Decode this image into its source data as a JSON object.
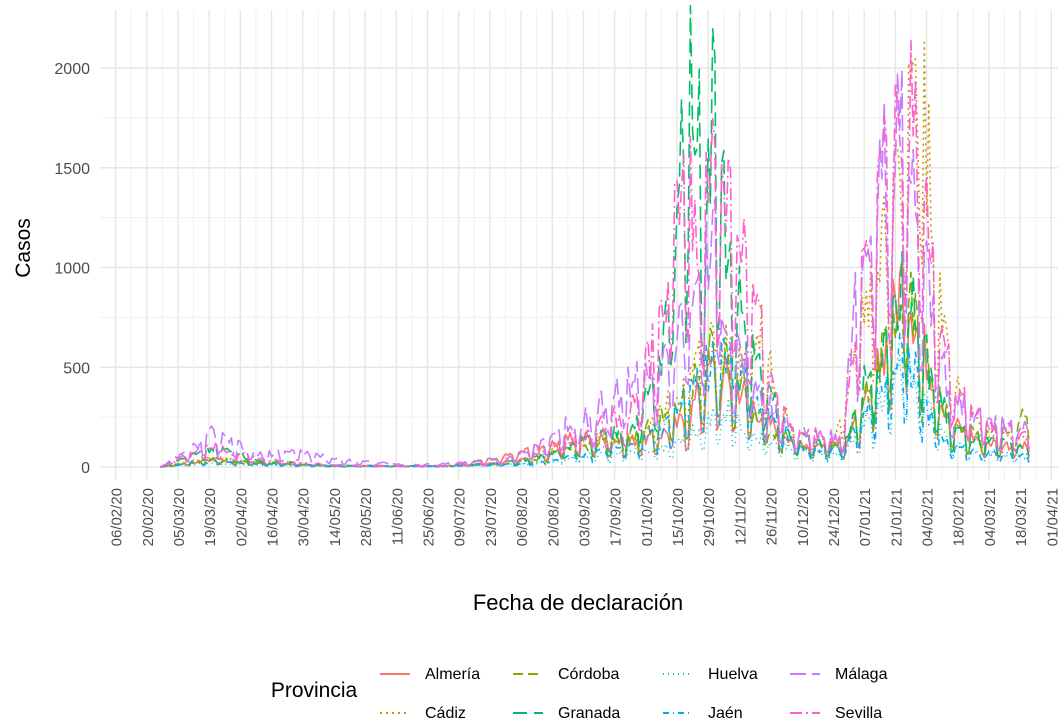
{
  "chart_data": {
    "type": "line",
    "title": "",
    "xlabel": "Fecha de declaración",
    "ylabel": "Casos",
    "x_tick_labels": [
      "06/02/20",
      "20/02/20",
      "05/03/20",
      "19/03/20",
      "02/04/20",
      "16/04/20",
      "30/04/20",
      "14/05/20",
      "28/05/20",
      "11/06/20",
      "25/06/20",
      "09/07/20",
      "23/07/20",
      "06/08/20",
      "20/08/20",
      "03/09/20",
      "17/09/20",
      "01/10/20",
      "15/10/20",
      "29/10/20",
      "12/11/20",
      "26/11/20",
      "10/12/20",
      "24/12/20",
      "07/01/21",
      "21/01/21",
      "04/02/21",
      "18/02/21",
      "04/03/21",
      "18/03/21",
      "01/04/21"
    ],
    "x_range": [
      "2020-01-30",
      "2021-04-04"
    ],
    "y_ticks": [
      0,
      500,
      1000,
      1500,
      2000
    ],
    "ylim": [
      0,
      2200
    ],
    "grid": true,
    "legend": {
      "title": "Provincia",
      "position": "bottom"
    },
    "series": [
      {
        "name": "Almería",
        "color": "#F8766D",
        "dash": "solid",
        "points": [
          [
            "2020-02-26",
            0
          ],
          [
            "2020-03-20",
            35
          ],
          [
            "2020-04-10",
            20
          ],
          [
            "2020-05-15",
            5
          ],
          [
            "2020-07-01",
            5
          ],
          [
            "2020-07-26",
            40
          ],
          [
            "2020-08-10",
            90
          ],
          [
            "2020-08-22",
            130
          ],
          [
            "2020-09-05",
            150
          ],
          [
            "2020-09-20",
            130
          ],
          [
            "2020-10-05",
            150
          ],
          [
            "2020-10-20",
            250
          ],
          [
            "2020-10-29",
            500
          ],
          [
            "2020-11-10",
            430
          ],
          [
            "2020-11-25",
            230
          ],
          [
            "2020-12-10",
            120
          ],
          [
            "2020-12-28",
            110
          ],
          [
            "2021-01-10",
            350
          ],
          [
            "2021-01-25",
            1000
          ],
          [
            "2021-02-03",
            600
          ],
          [
            "2021-02-15",
            230
          ],
          [
            "2021-03-01",
            130
          ],
          [
            "2021-03-22",
            100
          ]
        ]
      },
      {
        "name": "Cádiz",
        "color": "#CD9600",
        "dash": "2,4",
        "points": [
          [
            "2020-02-26",
            0
          ],
          [
            "2020-03-20",
            50
          ],
          [
            "2020-04-10",
            25
          ],
          [
            "2020-05-15",
            8
          ],
          [
            "2020-07-01",
            5
          ],
          [
            "2020-07-26",
            20
          ],
          [
            "2020-08-10",
            40
          ],
          [
            "2020-08-25",
            100
          ],
          [
            "2020-09-10",
            150
          ],
          [
            "2020-09-25",
            150
          ],
          [
            "2020-10-10",
            300
          ],
          [
            "2020-10-20",
            450
          ],
          [
            "2020-10-30",
            650
          ],
          [
            "2020-11-10",
            550
          ],
          [
            "2020-11-22",
            650
          ],
          [
            "2020-12-05",
            180
          ],
          [
            "2020-12-25",
            150
          ],
          [
            "2021-01-08",
            900
          ],
          [
            "2021-01-20",
            1300
          ],
          [
            "2021-02-01",
            2120
          ],
          [
            "2021-02-10",
            800
          ],
          [
            "2021-02-20",
            300
          ],
          [
            "2021-03-05",
            180
          ],
          [
            "2021-03-22",
            130
          ]
        ]
      },
      {
        "name": "Córdoba",
        "color": "#7CAE00",
        "dash": "10,5",
        "points": [
          [
            "2020-02-26",
            0
          ],
          [
            "2020-03-20",
            40
          ],
          [
            "2020-04-10",
            20
          ],
          [
            "2020-05-15",
            5
          ],
          [
            "2020-07-01",
            5
          ],
          [
            "2020-07-26",
            15
          ],
          [
            "2020-08-10",
            30
          ],
          [
            "2020-08-25",
            80
          ],
          [
            "2020-09-10",
            120
          ],
          [
            "2020-09-25",
            150
          ],
          [
            "2020-10-10",
            250
          ],
          [
            "2020-10-20",
            350
          ],
          [
            "2020-10-29",
            600
          ],
          [
            "2020-11-10",
            450
          ],
          [
            "2020-11-25",
            200
          ],
          [
            "2020-12-10",
            120
          ],
          [
            "2020-12-28",
            100
          ],
          [
            "2021-01-10",
            400
          ],
          [
            "2021-01-25",
            900
          ],
          [
            "2021-02-05",
            500
          ],
          [
            "2021-02-15",
            200
          ],
          [
            "2021-03-01",
            150
          ],
          [
            "2021-03-22",
            250
          ]
        ]
      },
      {
        "name": "Granada",
        "color": "#00BE67",
        "dash": "14,7",
        "points": [
          [
            "2020-02-26",
            0
          ],
          [
            "2020-03-20",
            100
          ],
          [
            "2020-04-10",
            30
          ],
          [
            "2020-05-15",
            8
          ],
          [
            "2020-07-01",
            5
          ],
          [
            "2020-07-26",
            20
          ],
          [
            "2020-08-10",
            40
          ],
          [
            "2020-08-25",
            100
          ],
          [
            "2020-09-10",
            150
          ],
          [
            "2020-09-25",
            200
          ],
          [
            "2020-10-08",
            500
          ],
          [
            "2020-10-16",
            1500
          ],
          [
            "2020-10-22",
            2180
          ],
          [
            "2020-10-27",
            1300
          ],
          [
            "2020-10-31",
            1900
          ],
          [
            "2020-11-08",
            1000
          ],
          [
            "2020-11-20",
            500
          ],
          [
            "2020-12-05",
            150
          ],
          [
            "2020-12-28",
            100
          ],
          [
            "2021-01-10",
            500
          ],
          [
            "2021-01-25",
            1000
          ],
          [
            "2021-02-05",
            500
          ],
          [
            "2021-02-15",
            200
          ],
          [
            "2021-03-01",
            130
          ],
          [
            "2021-03-22",
            100
          ]
        ]
      },
      {
        "name": "Huelva",
        "color": "#00BFC4",
        "dash": "1,4",
        "points": [
          [
            "2020-02-26",
            0
          ],
          [
            "2020-03-20",
            20
          ],
          [
            "2020-04-10",
            10
          ],
          [
            "2020-05-15",
            3
          ],
          [
            "2020-07-01",
            3
          ],
          [
            "2020-07-26",
            10
          ],
          [
            "2020-08-10",
            15
          ],
          [
            "2020-08-25",
            30
          ],
          [
            "2020-09-10",
            60
          ],
          [
            "2020-09-25",
            80
          ],
          [
            "2020-10-10",
            100
          ],
          [
            "2020-10-25",
            200
          ],
          [
            "2020-11-05",
            300
          ],
          [
            "2020-11-20",
            150
          ],
          [
            "2020-12-10",
            80
          ],
          [
            "2020-12-28",
            60
          ],
          [
            "2021-01-10",
            250
          ],
          [
            "2021-01-25",
            500
          ],
          [
            "2021-02-05",
            300
          ],
          [
            "2021-02-15",
            120
          ],
          [
            "2021-03-01",
            80
          ],
          [
            "2021-03-22",
            60
          ]
        ]
      },
      {
        "name": "Jaén",
        "color": "#00A9FF",
        "dash": "6,4,1,4",
        "points": [
          [
            "2020-02-26",
            0
          ],
          [
            "2020-03-20",
            30
          ],
          [
            "2020-04-10",
            15
          ],
          [
            "2020-05-15",
            5
          ],
          [
            "2020-07-01",
            3
          ],
          [
            "2020-07-26",
            10
          ],
          [
            "2020-08-10",
            20
          ],
          [
            "2020-08-25",
            50
          ],
          [
            "2020-09-10",
            80
          ],
          [
            "2020-09-25",
            100
          ],
          [
            "2020-10-10",
            200
          ],
          [
            "2020-10-25",
            450
          ],
          [
            "2020-11-05",
            600
          ],
          [
            "2020-11-20",
            300
          ],
          [
            "2020-12-10",
            100
          ],
          [
            "2020-12-28",
            80
          ],
          [
            "2021-01-10",
            300
          ],
          [
            "2021-01-25",
            650
          ],
          [
            "2021-02-05",
            250
          ],
          [
            "2021-02-15",
            100
          ],
          [
            "2021-03-01",
            70
          ],
          [
            "2021-03-22",
            50
          ]
        ]
      },
      {
        "name": "Málaga",
        "color": "#C77CFF",
        "dash": "16,6",
        "points": [
          [
            "2020-02-26",
            0
          ],
          [
            "2020-03-10",
            80
          ],
          [
            "2020-03-20",
            170
          ],
          [
            "2020-04-10",
            60
          ],
          [
            "2020-04-25",
            80
          ],
          [
            "2020-05-15",
            40
          ],
          [
            "2020-06-15",
            10
          ],
          [
            "2020-07-10",
            20
          ],
          [
            "2020-07-26",
            40
          ],
          [
            "2020-08-10",
            80
          ],
          [
            "2020-08-25",
            200
          ],
          [
            "2020-09-10",
            300
          ],
          [
            "2020-09-25",
            450
          ],
          [
            "2020-10-10",
            500
          ],
          [
            "2020-10-20",
            800
          ],
          [
            "2020-11-01",
            1100
          ],
          [
            "2020-11-10",
            600
          ],
          [
            "2020-11-25",
            300
          ],
          [
            "2020-12-10",
            180
          ],
          [
            "2020-12-28",
            150
          ],
          [
            "2021-01-08",
            1400
          ],
          [
            "2021-01-20",
            1500
          ],
          [
            "2021-01-25",
            1780
          ],
          [
            "2021-02-05",
            900
          ],
          [
            "2021-02-15",
            350
          ],
          [
            "2021-03-01",
            250
          ],
          [
            "2021-03-22",
            180
          ]
        ]
      },
      {
        "name": "Sevilla",
        "color": "#FF61CC",
        "dash": "12,4,2,4",
        "points": [
          [
            "2020-02-26",
            0
          ],
          [
            "2020-03-20",
            120
          ],
          [
            "2020-04-10",
            40
          ],
          [
            "2020-05-15",
            10
          ],
          [
            "2020-07-01",
            5
          ],
          [
            "2020-07-26",
            20
          ],
          [
            "2020-08-10",
            50
          ],
          [
            "2020-08-25",
            120
          ],
          [
            "2020-09-10",
            200
          ],
          [
            "2020-09-25",
            300
          ],
          [
            "2020-10-08",
            700
          ],
          [
            "2020-10-17",
            1700
          ],
          [
            "2020-10-24",
            1100
          ],
          [
            "2020-11-01",
            1500
          ],
          [
            "2020-11-10",
            1300
          ],
          [
            "2020-11-20",
            700
          ],
          [
            "2020-12-05",
            200
          ],
          [
            "2020-12-28",
            150
          ],
          [
            "2021-01-10",
            1300
          ],
          [
            "2021-01-28",
            1950
          ],
          [
            "2021-02-08",
            900
          ],
          [
            "2021-02-18",
            350
          ],
          [
            "2021-03-05",
            200
          ],
          [
            "2021-03-22",
            150
          ]
        ]
      }
    ]
  }
}
